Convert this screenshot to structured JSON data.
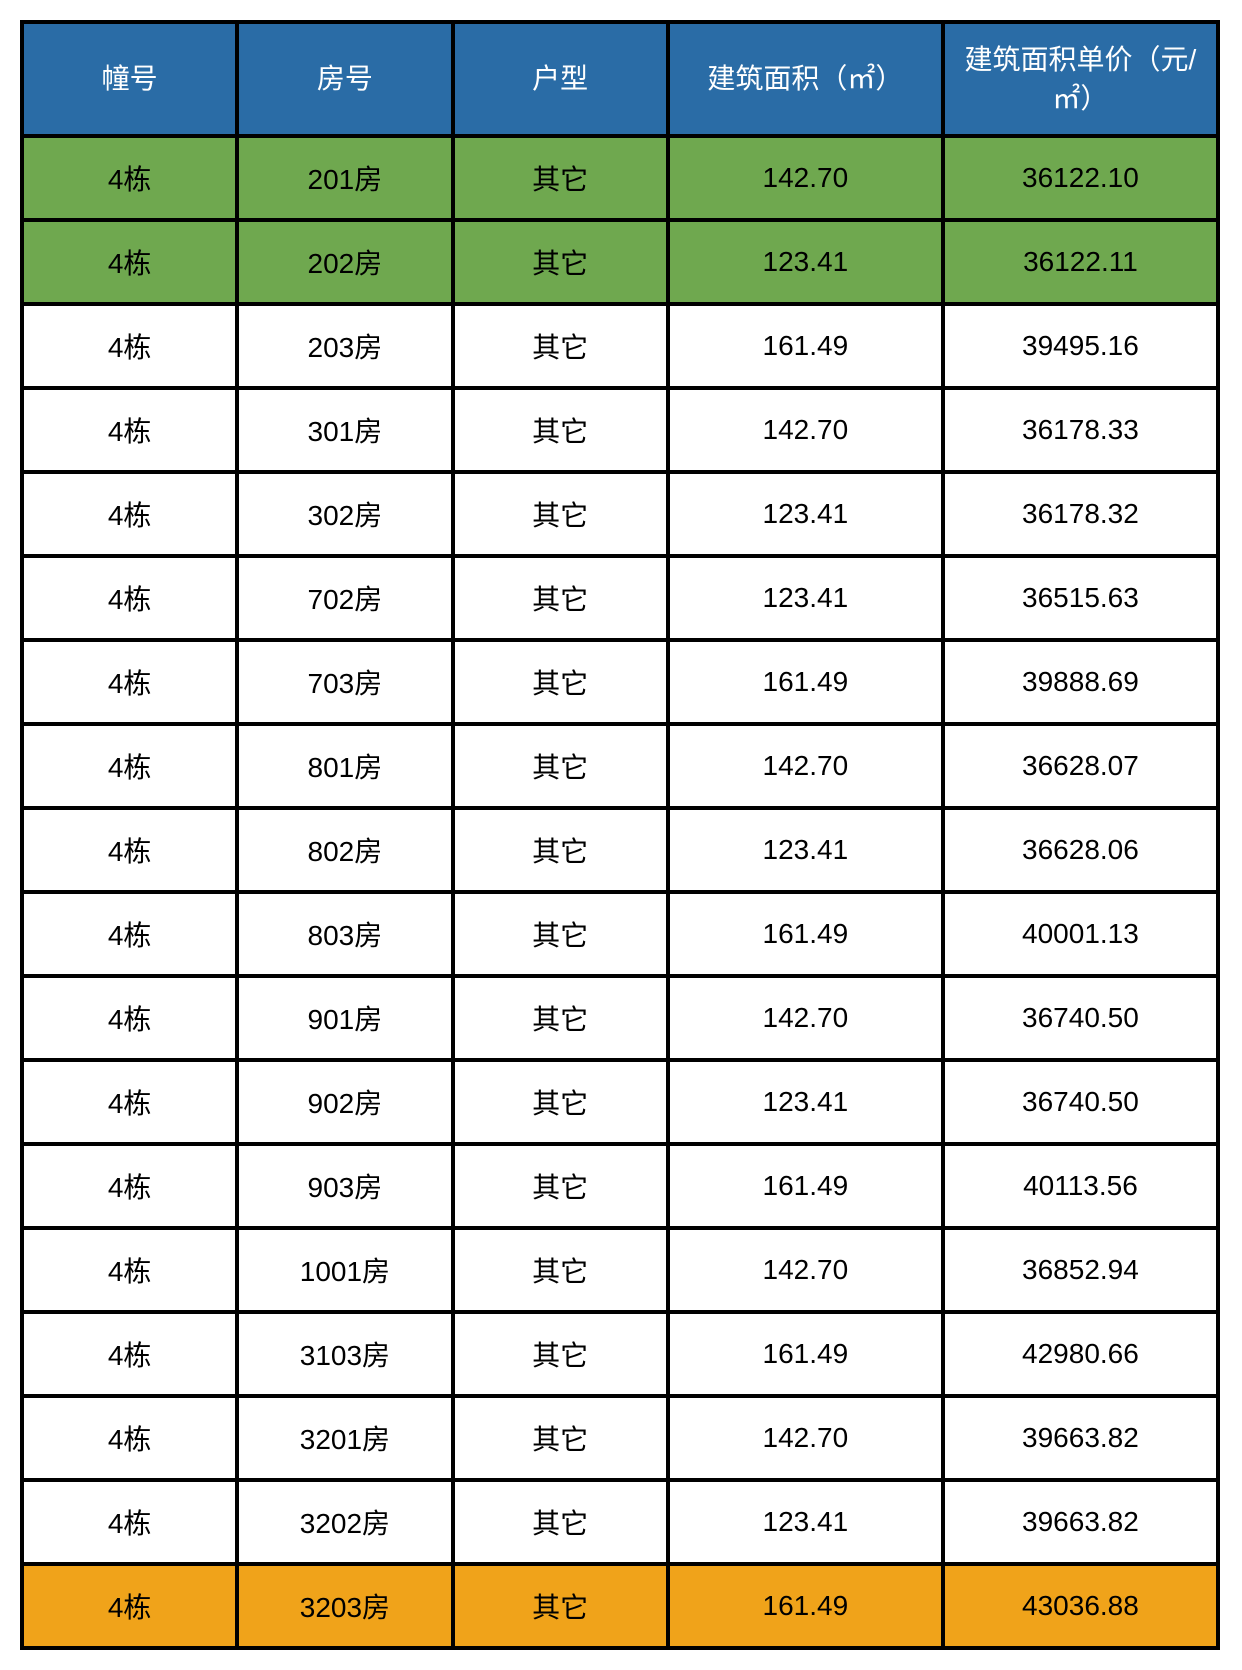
{
  "table": {
    "header_bg": "#2a6ca6",
    "header_fg": "#ffffff",
    "border_color": "#000000",
    "row_default_bg": "#ffffff",
    "font_size_header": 28,
    "font_size_cell": 28,
    "columns": [
      {
        "key": "building",
        "label": "幢号"
      },
      {
        "key": "room",
        "label": "房号"
      },
      {
        "key": "type",
        "label": "户型"
      },
      {
        "key": "area",
        "label": "建筑面积（㎡）"
      },
      {
        "key": "price",
        "label": "建筑面积单价（元/㎡）"
      }
    ],
    "rows": [
      {
        "building": "4栋",
        "room": "201房",
        "type": "其它",
        "area": "142.70",
        "price": "36122.10",
        "bg": "#6fa84f"
      },
      {
        "building": "4栋",
        "room": "202房",
        "type": "其它",
        "area": "123.41",
        "price": "36122.11",
        "bg": "#6fa84f"
      },
      {
        "building": "4栋",
        "room": "203房",
        "type": "其它",
        "area": "161.49",
        "price": "39495.16",
        "bg": "#ffffff"
      },
      {
        "building": "4栋",
        "room": "301房",
        "type": "其它",
        "area": "142.70",
        "price": "36178.33",
        "bg": "#ffffff"
      },
      {
        "building": "4栋",
        "room": "302房",
        "type": "其它",
        "area": "123.41",
        "price": "36178.32",
        "bg": "#ffffff"
      },
      {
        "building": "4栋",
        "room": "702房",
        "type": "其它",
        "area": "123.41",
        "price": "36515.63",
        "bg": "#ffffff"
      },
      {
        "building": "4栋",
        "room": "703房",
        "type": "其它",
        "area": "161.49",
        "price": "39888.69",
        "bg": "#ffffff"
      },
      {
        "building": "4栋",
        "room": "801房",
        "type": "其它",
        "area": "142.70",
        "price": "36628.07",
        "bg": "#ffffff"
      },
      {
        "building": "4栋",
        "room": "802房",
        "type": "其它",
        "area": "123.41",
        "price": "36628.06",
        "bg": "#ffffff"
      },
      {
        "building": "4栋",
        "room": "803房",
        "type": "其它",
        "area": "161.49",
        "price": "40001.13",
        "bg": "#ffffff"
      },
      {
        "building": "4栋",
        "room": "901房",
        "type": "其它",
        "area": "142.70",
        "price": "36740.50",
        "bg": "#ffffff"
      },
      {
        "building": "4栋",
        "room": "902房",
        "type": "其它",
        "area": "123.41",
        "price": "36740.50",
        "bg": "#ffffff"
      },
      {
        "building": "4栋",
        "room": "903房",
        "type": "其它",
        "area": "161.49",
        "price": "40113.56",
        "bg": "#ffffff"
      },
      {
        "building": "4栋",
        "room": "1001房",
        "type": "其它",
        "area": "142.70",
        "price": "36852.94",
        "bg": "#ffffff"
      },
      {
        "building": "4栋",
        "room": "3103房",
        "type": "其它",
        "area": "161.49",
        "price": "42980.66",
        "bg": "#ffffff"
      },
      {
        "building": "4栋",
        "room": "3201房",
        "type": "其它",
        "area": "142.70",
        "price": "39663.82",
        "bg": "#ffffff"
      },
      {
        "building": "4栋",
        "room": "3202房",
        "type": "其它",
        "area": "123.41",
        "price": "39663.82",
        "bg": "#ffffff"
      },
      {
        "building": "4栋",
        "room": "3203房",
        "type": "其它",
        "area": "161.49",
        "price": "43036.88",
        "bg": "#f0a31a"
      }
    ]
  }
}
